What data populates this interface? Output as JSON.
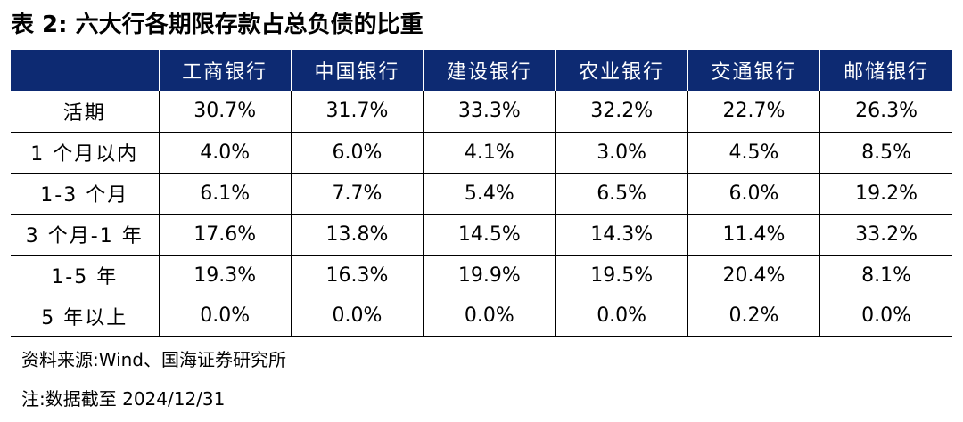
{
  "title": "表 2:  六大行各期限存款占总负债的比重",
  "colors": {
    "header_bg": "#0d2a72",
    "header_text": "#ffffff"
  },
  "table": {
    "corner_header": "",
    "columns": [
      "工商银行",
      "中国银行",
      "建设银行",
      "农业银行",
      "交通银行",
      "邮储银行"
    ],
    "rows": [
      {
        "label": "活期",
        "values": [
          "30.7%",
          "31.7%",
          "33.3%",
          "32.2%",
          "22.7%",
          "26.3%"
        ]
      },
      {
        "label": "1 个月以内",
        "values": [
          "4.0%",
          "6.0%",
          "4.1%",
          "3.0%",
          "4.5%",
          "8.5%"
        ]
      },
      {
        "label": "1-3 个月",
        "values": [
          "6.1%",
          "7.7%",
          "5.4%",
          "6.5%",
          "6.0%",
          "19.2%"
        ]
      },
      {
        "label": "3 个月-1 年",
        "values": [
          "17.6%",
          "13.8%",
          "14.5%",
          "14.3%",
          "11.4%",
          "33.2%"
        ]
      },
      {
        "label": "1-5 年",
        "values": [
          "19.3%",
          "16.3%",
          "19.9%",
          "19.5%",
          "20.4%",
          "8.1%"
        ]
      },
      {
        "label": "5 年以上",
        "values": [
          "0.0%",
          "0.0%",
          "0.0%",
          "0.0%",
          "0.2%",
          "0.0%"
        ]
      }
    ]
  },
  "source": "资料来源:Wind、国海证券研究所",
  "note": "注:数据截至 2024/12/31"
}
